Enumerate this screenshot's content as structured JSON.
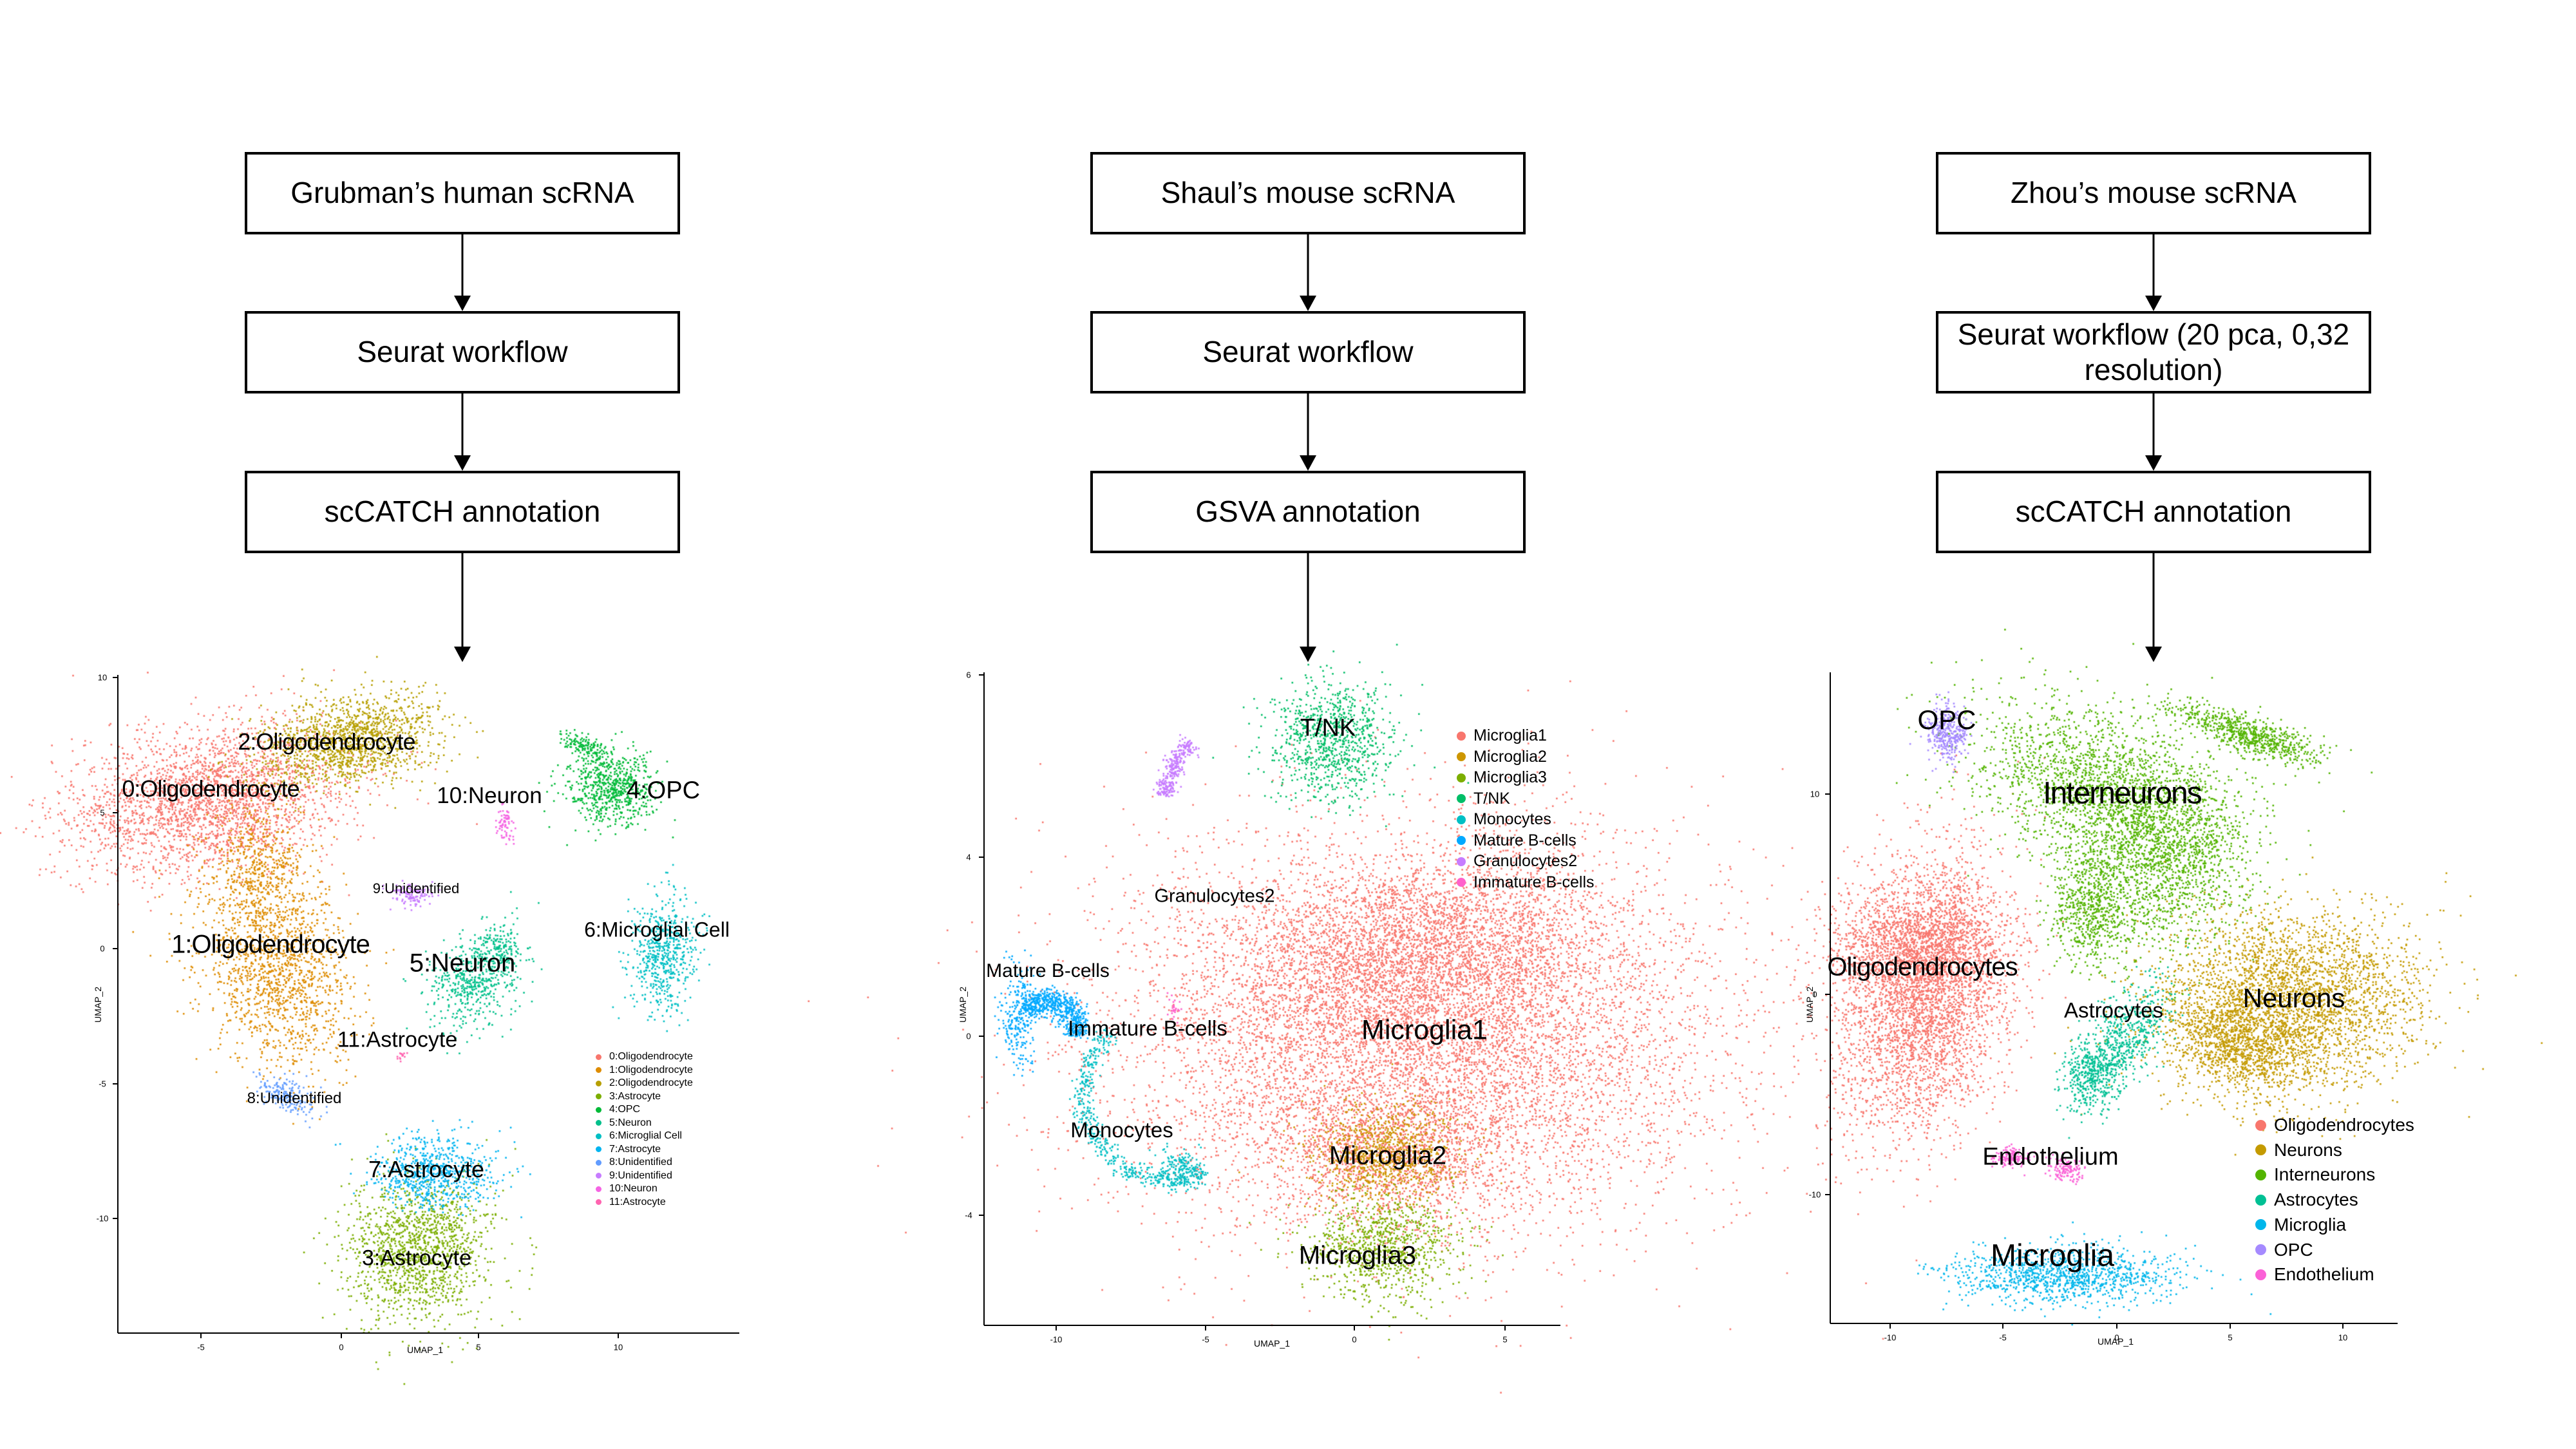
{
  "columns": [
    {
      "steps": [
        "Grubman’s human scRNA",
        "Seurat workflow",
        "scCATCH annotation"
      ],
      "umap": {
        "xlabel": "UMAP_1",
        "ylabel": "UMAP_2",
        "xticks": [
          "-5",
          "0",
          "5",
          "10"
        ],
        "yticks": [
          "10",
          "5",
          "0",
          "-5",
          "-10"
        ],
        "clusters": [
          {
            "label": "0:Oligodendrocyte",
            "color": "#F8766D"
          },
          {
            "label": "1:Oligodendrocyte",
            "color": "#DE8C00"
          },
          {
            "label": "2:Oligodendrocyte",
            "color": "#B79F00"
          },
          {
            "label": "3:Astrocyte",
            "color": "#7CAE00"
          },
          {
            "label": "4:OPC",
            "color": "#00BA38"
          },
          {
            "label": "5:Neuron",
            "color": "#00C08B"
          },
          {
            "label": "6:Microglial Cell",
            "color": "#00BFC4"
          },
          {
            "label": "7:Astrocyte",
            "color": "#00B4F0"
          },
          {
            "label": "8:Unidentified",
            "color": "#619CFF"
          },
          {
            "label": "9:Unidentified",
            "color": "#C77CFF"
          },
          {
            "label": "10:Neuron",
            "color": "#F564E3"
          },
          {
            "label": "11:Astrocyte",
            "color": "#FF64B0"
          }
        ]
      }
    },
    {
      "steps": [
        "Shaul’s mouse scRNA",
        "Seurat workflow",
        "GSVA annotation"
      ],
      "umap": {
        "xlabel": "UMAP_1",
        "ylabel": "UMAP_2",
        "xticks": [
          "-10",
          "-5",
          "0",
          "5"
        ],
        "yticks": [
          "6",
          "4",
          "0",
          "-4"
        ],
        "clusters": [
          {
            "label": "Microglia1",
            "color": "#F8766D"
          },
          {
            "label": "Microglia2",
            "color": "#CD9600"
          },
          {
            "label": "Microglia3",
            "color": "#7CAE00"
          },
          {
            "label": "T/NK",
            "color": "#00BE67"
          },
          {
            "label": "Monocytes",
            "color": "#00BFC4"
          },
          {
            "label": "Mature B-cells",
            "color": "#00A9FF"
          },
          {
            "label": "Granulocytes2",
            "color": "#C77CFF"
          },
          {
            "label": "Immature B-cells",
            "color": "#FF61CC"
          }
        ]
      }
    },
    {
      "steps": [
        "Zhou’s mouse scRNA",
        "Seurat workflow (20 pca, 0,32 resolution)",
        "scCATCH annotation"
      ],
      "umap": {
        "xlabel": "UMAP_1",
        "ylabel": "UMAP_2",
        "xticks": [
          "-10",
          "-5",
          "0",
          "5",
          "10"
        ],
        "yticks": [
          "10",
          "0",
          "-10"
        ],
        "clusters": [
          {
            "label": "Oligodendrocytes",
            "color": "#F8766D"
          },
          {
            "label": "Neurons",
            "color": "#C49A00"
          },
          {
            "label": "Interneurons",
            "color": "#53B400"
          },
          {
            "label": "Astrocytes",
            "color": "#00C094"
          },
          {
            "label": "Microglia",
            "color": "#00B6EB"
          },
          {
            "label": "OPC",
            "color": "#A58AFF"
          },
          {
            "label": "Endothelium",
            "color": "#FB61D7"
          }
        ]
      }
    }
  ]
}
